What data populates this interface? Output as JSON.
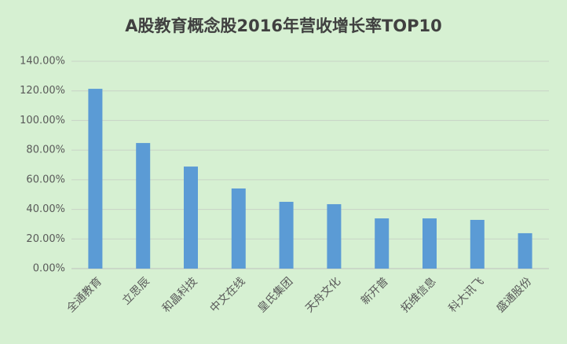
{
  "chart_data": {
    "type": "bar",
    "title": "A股教育概念股2016年营收增长率TOP10",
    "categories": [
      "全通教育",
      "立思辰",
      "和晶科技",
      "中文在线",
      "皇氏集团",
      "天舟文化",
      "新开普",
      "拓维信息",
      "科大讯飞",
      "盛通股份"
    ],
    "values": [
      121.4,
      84.8,
      68.9,
      54.1,
      45.1,
      43.5,
      33.9,
      33.9,
      32.9,
      23.9
    ],
    "color": "#5b9bd5",
    "ylim": [
      0,
      140
    ],
    "yticks": [
      {
        "value": 0,
        "label": "0.00%"
      },
      {
        "value": 20,
        "label": "20.00%"
      },
      {
        "value": 40,
        "label": "40.00%"
      },
      {
        "value": 60,
        "label": "60.00%"
      },
      {
        "value": 80,
        "label": "80.00%"
      },
      {
        "value": 100,
        "label": "100.00%"
      },
      {
        "value": 120,
        "label": "120.00%"
      },
      {
        "value": 140,
        "label": "140.00%"
      }
    ],
    "grid": true
  }
}
